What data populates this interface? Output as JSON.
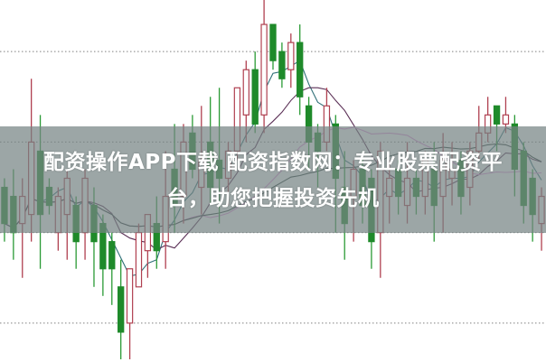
{
  "caption": {
    "line1": "配资操作APP下载 配资指数网：专业股票配资平",
    "line2": "台，助您把握投资先机"
  },
  "chart_data": {
    "type": "candlestick",
    "title": "",
    "xlabel": "",
    "ylabel": "",
    "ylim": [
      0.57,
      4.57
    ],
    "gridlines": [
      1,
      2,
      3,
      4
    ],
    "grid": "horizontal dotted",
    "colors": {
      "up": "#d0283a",
      "down": "#1f8a2a",
      "grid": "#999999",
      "ma": [
        "#2f6f78",
        "#5a2f55",
        "#e08fd8",
        "#2c3d3a"
      ]
    },
    "moving_averages": [
      5,
      10,
      20,
      30
    ],
    "candles": [
      [
        2.5,
        2.6,
        1.9,
        2.1
      ],
      [
        2.4,
        2.7,
        1.7,
        2.0
      ],
      [
        2.1,
        2.6,
        1.5,
        2.4
      ],
      [
        2.2,
        3.7,
        1.9,
        3.0
      ],
      [
        2.9,
        3.3,
        1.6,
        2.2
      ],
      [
        2.5,
        2.6,
        2.2,
        2.3
      ],
      [
        2.0,
        2.5,
        1.8,
        2.4
      ],
      [
        2.2,
        2.7,
        1.7,
        2.6
      ],
      [
        2.3,
        2.4,
        1.6,
        1.9
      ],
      [
        2.0,
        2.7,
        1.7,
        2.6
      ],
      [
        2.3,
        2.5,
        1.4,
        1.9
      ],
      [
        2.1,
        2.2,
        1.3,
        1.6
      ],
      [
        1.9,
        2.0,
        1.2,
        1.6
      ],
      [
        1.4,
        1.7,
        0.6,
        0.9
      ],
      [
        1.0,
        1.6,
        0.6,
        1.6
      ],
      [
        1.4,
        2.1,
        1.4,
        2.0
      ],
      [
        1.8,
        2.2,
        1.5,
        2.2
      ],
      [
        2.1,
        2.4,
        1.6,
        1.8
      ],
      [
        1.9,
        2.9,
        1.6,
        2.4
      ],
      [
        2.7,
        3.2,
        2.0,
        2.3
      ],
      [
        2.4,
        3.2,
        2.1,
        3.0
      ],
      [
        3.1,
        3.3,
        2.6,
        2.7
      ],
      [
        2.5,
        3.4,
        2.2,
        2.8
      ],
      [
        3.0,
        3.5,
        2.3,
        2.5
      ],
      [
        2.8,
        3.6,
        2.1,
        2.6
      ],
      [
        2.6,
        3.0,
        2.3,
        2.9
      ],
      [
        2.9,
        3.6,
        2.8,
        3.6
      ],
      [
        3.3,
        3.9,
        3.0,
        3.8
      ],
      [
        3.8,
        4.0,
        3.1,
        3.2
      ],
      [
        3.3,
        4.57,
        3.1,
        4.3
      ],
      [
        4.3,
        4.3,
        3.8,
        3.9
      ],
      [
        4.0,
        4.1,
        3.6,
        3.7
      ],
      [
        3.8,
        4.2,
        3.6,
        4.1
      ],
      [
        4.1,
        4.3,
        3.3,
        3.5
      ],
      [
        3.4,
        3.5,
        2.7,
        3.0
      ],
      [
        3.1,
        3.2,
        2.5,
        2.9
      ],
      [
        3.0,
        3.6,
        2.9,
        3.4
      ],
      [
        3.2,
        3.3,
        2.0,
        2.6
      ],
      [
        2.5,
        2.9,
        1.7,
        2.1
      ],
      [
        2.4,
        2.8,
        1.9,
        2.7
      ],
      [
        2.7,
        2.9,
        2.1,
        2.3
      ],
      [
        2.6,
        2.7,
        1.6,
        1.9
      ],
      [
        2.0,
        3.0,
        1.5,
        2.9
      ],
      [
        2.4,
        2.8,
        2.1,
        2.6
      ],
      [
        2.7,
        2.8,
        2.2,
        2.4
      ],
      [
        2.3,
        3.0,
        2.1,
        2.6
      ],
      [
        2.6,
        2.7,
        2.2,
        2.4
      ],
      [
        2.4,
        2.9,
        2.2,
        2.8
      ],
      [
        2.7,
        3.0,
        1.9,
        2.3
      ],
      [
        2.4,
        3.1,
        2.0,
        2.8
      ],
      [
        2.6,
        3.0,
        2.3,
        2.7
      ],
      [
        2.8,
        2.9,
        2.2,
        2.4
      ],
      [
        2.5,
        3.0,
        2.3,
        2.9
      ],
      [
        2.9,
        3.4,
        2.8,
        3.1
      ],
      [
        3.1,
        3.5,
        3.0,
        3.3
      ],
      [
        3.4,
        3.4,
        2.9,
        3.2
      ],
      [
        3.2,
        3.5,
        3.1,
        3.3
      ],
      [
        3.2,
        3.3,
        2.4,
        2.7
      ],
      [
        2.9,
        3.0,
        2.1,
        2.3
      ],
      [
        2.6,
        2.7,
        1.9,
        2.2
      ],
      [
        2.1,
        2.5,
        1.8,
        2.4
      ]
    ]
  }
}
